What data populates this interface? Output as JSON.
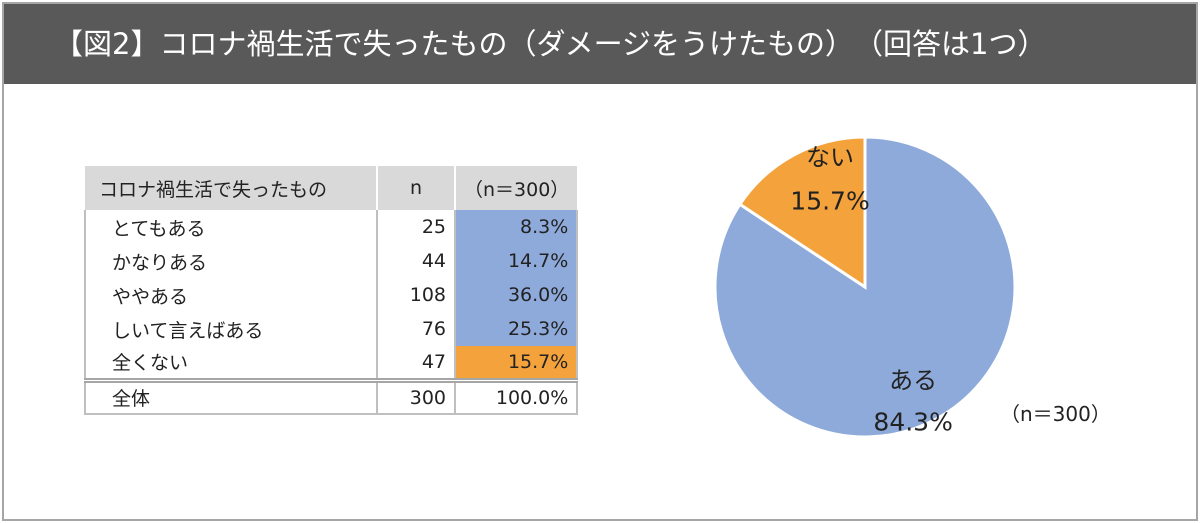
{
  "header": {
    "title": "【図2】コロナ禍生活で失ったもの（ダメージをうけたもの）　（回答は1つ）"
  },
  "table": {
    "columns": [
      "コロナ禍生活で失ったもの",
      "n",
      "（n＝300）"
    ],
    "rows": [
      {
        "label": "とてもある",
        "n": "25",
        "pct": "8.3%"
      },
      {
        "label": "かなりある",
        "n": "44",
        "pct": "14.7%"
      },
      {
        "label": "ややある",
        "n": "108",
        "pct": "36.0%"
      },
      {
        "label": "しいて言えばある",
        "n": "76",
        "pct": "25.3%"
      },
      {
        "label": "全くない",
        "n": "47",
        "pct": "15.7%"
      }
    ],
    "total": {
      "label": "全体",
      "n": "300",
      "pct": "100.0%"
    }
  },
  "colors": {
    "title_bg": "#595959",
    "blue": "#8eaadb",
    "orange": "#f4a23c",
    "header_bg": "#d9d9d9"
  },
  "chart_data": {
    "type": "pie",
    "categories": [
      "ある",
      "ない"
    ],
    "values": [
      84.3,
      15.7
    ],
    "value_labels": [
      "84.3%",
      "15.7%"
    ],
    "colors": [
      "#8eaadb",
      "#f4a23c"
    ],
    "note": "（n＝300）"
  }
}
